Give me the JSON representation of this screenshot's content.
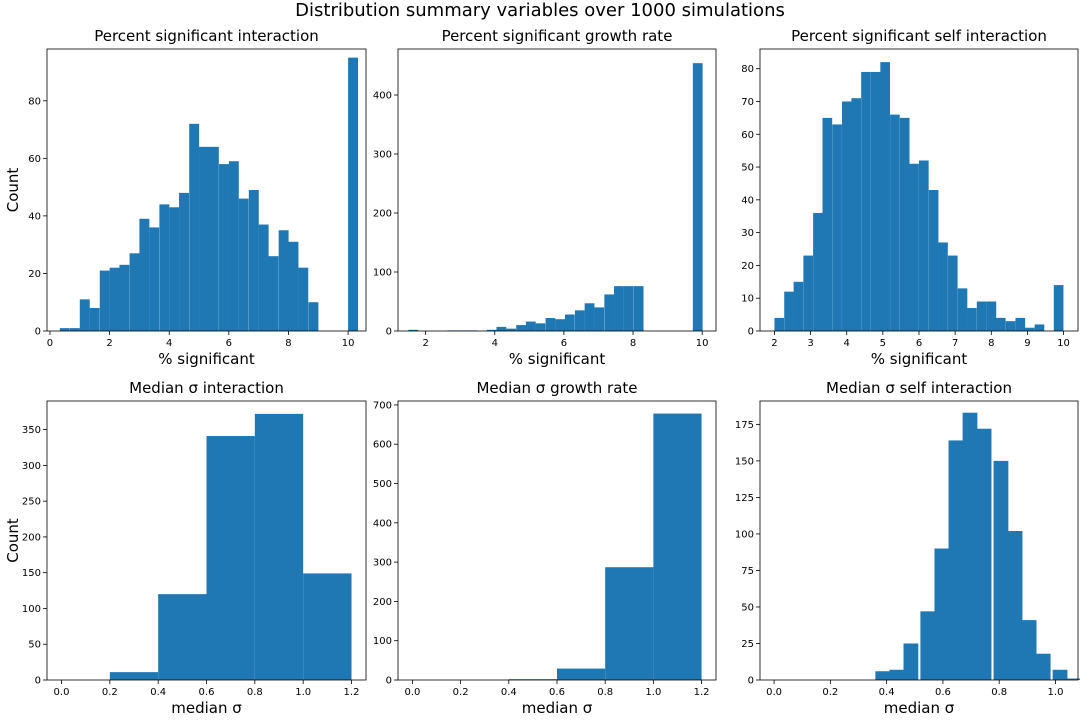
{
  "suptitle": "Distribution summary variables over 1000 simulations",
  "bar_color": "#1f77b4",
  "chart_data": [
    {
      "type": "bar",
      "title": "Percent significant interaction",
      "xlabel": "% significant",
      "ylabel": "Count",
      "xlim": [
        -0.1,
        10.6
      ],
      "ylim": [
        0,
        98
      ],
      "xticks": [
        0,
        2,
        4,
        6,
        8,
        10
      ],
      "yticks": [
        0,
        20,
        40,
        60,
        80
      ],
      "bin_width": 0.333,
      "bins": [
        [
          0.33,
          1
        ],
        [
          0.67,
          1
        ],
        [
          1.0,
          11
        ],
        [
          1.33,
          8
        ],
        [
          1.67,
          21
        ],
        [
          2.0,
          22
        ],
        [
          2.33,
          23
        ],
        [
          2.67,
          27
        ],
        [
          3.0,
          39
        ],
        [
          3.33,
          36
        ],
        [
          3.67,
          44
        ],
        [
          4.0,
          43
        ],
        [
          4.33,
          48
        ],
        [
          4.67,
          72
        ],
        [
          5.0,
          64
        ],
        [
          5.33,
          64
        ],
        [
          5.67,
          58
        ],
        [
          6.0,
          59
        ],
        [
          6.33,
          46
        ],
        [
          6.67,
          49
        ],
        [
          7.0,
          37
        ],
        [
          7.33,
          26
        ],
        [
          7.67,
          35
        ],
        [
          8.0,
          31
        ],
        [
          8.33,
          22
        ],
        [
          8.67,
          10
        ],
        [
          10.0,
          95
        ]
      ]
    },
    {
      "type": "bar",
      "title": "Percent significant  growth rate",
      "xlabel": "% significant",
      "ylabel": "",
      "xlim": [
        1.2,
        10.4
      ],
      "ylim": [
        0,
        478
      ],
      "xticks": [
        2,
        4,
        6,
        8,
        10
      ],
      "yticks": [
        0,
        100,
        200,
        300,
        400
      ],
      "bin_width": 0.283,
      "bins": [
        [
          1.5,
          2
        ],
        [
          2.63,
          1
        ],
        [
          2.92,
          1
        ],
        [
          3.2,
          1
        ],
        [
          3.77,
          2
        ],
        [
          4.05,
          7
        ],
        [
          4.33,
          4
        ],
        [
          4.62,
          10
        ],
        [
          4.9,
          16
        ],
        [
          5.18,
          13
        ],
        [
          5.47,
          22
        ],
        [
          5.75,
          20
        ],
        [
          6.03,
          28
        ],
        [
          6.32,
          35
        ],
        [
          6.6,
          47
        ],
        [
          6.88,
          40
        ],
        [
          7.17,
          62
        ],
        [
          7.45,
          76
        ],
        [
          7.73,
          76
        ],
        [
          8.02,
          76
        ],
        [
          9.73,
          454
        ]
      ]
    },
    {
      "type": "bar",
      "title": "Percent significant  self interaction",
      "xlabel": "% significant",
      "ylabel": "",
      "xlim": [
        1.6,
        10.4
      ],
      "ylim": [
        0,
        86
      ],
      "xticks": [
        2,
        3,
        4,
        5,
        6,
        7,
        8,
        9,
        10
      ],
      "yticks": [
        0,
        10,
        20,
        30,
        40,
        50,
        60,
        70,
        80
      ],
      "bin_width": 0.267,
      "bins": [
        [
          2.0,
          4
        ],
        [
          2.27,
          12
        ],
        [
          2.53,
          15
        ],
        [
          2.8,
          23
        ],
        [
          3.07,
          36
        ],
        [
          3.33,
          65
        ],
        [
          3.6,
          63
        ],
        [
          3.87,
          70
        ],
        [
          4.13,
          71
        ],
        [
          4.4,
          79
        ],
        [
          4.67,
          79
        ],
        [
          4.93,
          82
        ],
        [
          5.2,
          66
        ],
        [
          5.47,
          65
        ],
        [
          5.73,
          51
        ],
        [
          6.0,
          52
        ],
        [
          6.27,
          43
        ],
        [
          6.53,
          27
        ],
        [
          6.8,
          23
        ],
        [
          7.07,
          13
        ],
        [
          7.33,
          7
        ],
        [
          7.6,
          9
        ],
        [
          7.87,
          9
        ],
        [
          8.13,
          4
        ],
        [
          8.4,
          3
        ],
        [
          8.67,
          4
        ],
        [
          8.93,
          1
        ],
        [
          9.2,
          2
        ],
        [
          9.73,
          14
        ]
      ]
    },
    {
      "type": "bar",
      "title": "Median σ interaction",
      "xlabel": "median σ",
      "ylabel": "Count",
      "xlim": [
        -0.06,
        1.26
      ],
      "ylim": [
        0,
        390
      ],
      "xticks": [
        "0.0",
        "0.2",
        "0.4",
        "0.6",
        "0.8",
        "1.0",
        "1.2"
      ],
      "yticks": [
        0,
        50,
        100,
        150,
        200,
        250,
        300,
        350
      ],
      "bin_width": 0.2,
      "bins": [
        [
          0.2,
          11
        ],
        [
          0.4,
          120
        ],
        [
          0.6,
          341
        ],
        [
          0.8,
          372
        ],
        [
          1.0,
          149
        ]
      ]
    },
    {
      "type": "bar",
      "title": "Median σ growth rate",
      "xlabel": "median σ",
      "ylabel": "",
      "xlim": [
        -0.06,
        1.26
      ],
      "ylim": [
        0,
        710
      ],
      "xticks": [
        "0.0",
        "0.2",
        "0.4",
        "0.6",
        "0.8",
        "1.0",
        "1.2"
      ],
      "yticks": [
        0,
        100,
        200,
        300,
        400,
        500,
        600,
        700
      ],
      "bin_width": 0.2,
      "bins": [
        [
          0.4,
          2
        ],
        [
          0.6,
          29
        ],
        [
          0.8,
          287
        ],
        [
          1.0,
          678
        ]
      ]
    },
    {
      "type": "bar",
      "title": "Median σ self interaction",
      "xlabel": "median σ",
      "ylabel": "",
      "xlim": [
        -0.05,
        1.08
      ],
      "ylim": [
        0,
        191
      ],
      "xticks": [
        "0.0",
        "0.2",
        "0.4",
        "0.6",
        "0.8",
        "1.0"
      ],
      "yticks": [
        0,
        25,
        50,
        75,
        100,
        125,
        150,
        175
      ],
      "bin_width": 0.0525,
      "bins": [
        [
          0.36,
          6
        ],
        [
          0.41,
          7
        ],
        [
          0.46,
          25
        ],
        [
          0.52,
          47
        ],
        [
          0.57,
          90
        ],
        [
          0.62,
          164
        ],
        [
          0.67,
          183
        ],
        [
          0.72,
          172
        ],
        [
          0.78,
          150
        ],
        [
          0.83,
          102
        ],
        [
          0.88,
          41
        ],
        [
          0.93,
          18
        ],
        [
          0.99,
          7
        ],
        [
          1.04,
          1
        ]
      ]
    }
  ]
}
